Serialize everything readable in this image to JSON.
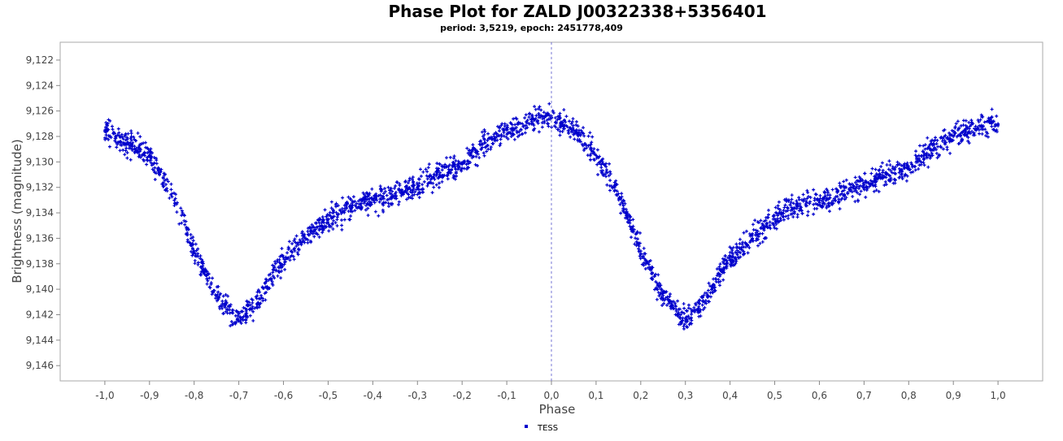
{
  "chart_data": {
    "type": "scatter",
    "title": "Phase Plot for  ZALD J00322338+5356401",
    "subtitle": "period: 3,5219, epoch: 2451778,409",
    "xlabel": "Phase",
    "ylabel": "Brightness (magnitude)",
    "xlim": [
      -1.1,
      1.1
    ],
    "ylim": [
      9.1206,
      9.1472
    ],
    "y_inverted": true,
    "x_ticks": [
      "-1,0",
      "-0,9",
      "-0,8",
      "-0,7",
      "-0,6",
      "-0,5",
      "-0,4",
      "-0,3",
      "-0,2",
      "-0,1",
      "0,0",
      "0,1",
      "0,2",
      "0,3",
      "0,4",
      "0,5",
      "0,6",
      "0,7",
      "0,8",
      "0,9",
      "1,0"
    ],
    "y_ticks": [
      "9,122",
      "9,124",
      "9,126",
      "9,128",
      "9,130",
      "9,132",
      "9,134",
      "9,136",
      "9,138",
      "9,140",
      "9,142",
      "9,144",
      "9,146"
    ],
    "grid": false,
    "legend_position": "bottom-center",
    "series": [
      {
        "name": "TESS",
        "color": "#0000cc",
        "marker": "plus",
        "x": [
          -1.0,
          -0.95,
          -0.9,
          -0.85,
          -0.8,
          -0.75,
          -0.7,
          -0.65,
          -0.6,
          -0.55,
          -0.5,
          -0.45,
          -0.4,
          -0.35,
          -0.3,
          -0.25,
          -0.2,
          -0.15,
          -0.1,
          -0.05,
          0.0,
          0.05,
          0.1,
          0.15,
          0.2,
          0.25,
          0.3,
          0.35,
          0.4,
          0.45,
          0.5,
          0.55,
          0.6,
          0.65,
          0.7,
          0.75,
          0.8,
          0.85,
          0.9,
          0.95,
          1.0
        ],
        "y": [
          9.1275,
          9.1285,
          9.1295,
          9.1325,
          9.137,
          9.1405,
          9.1425,
          9.1405,
          9.1375,
          9.136,
          9.1345,
          9.1335,
          9.133,
          9.1325,
          9.1318,
          9.131,
          9.1302,
          9.1285,
          9.1275,
          9.127,
          9.1265,
          9.1275,
          9.1295,
          9.1325,
          9.137,
          9.1405,
          9.1425,
          9.1405,
          9.1375,
          9.136,
          9.1345,
          9.1335,
          9.133,
          9.1325,
          9.1318,
          9.131,
          9.1305,
          9.129,
          9.128,
          9.1272,
          9.127
        ]
      }
    ],
    "annotations": [
      {
        "type": "vertical-line",
        "x": 0.0,
        "style": "dashed",
        "color": "#4444cc"
      }
    ]
  }
}
